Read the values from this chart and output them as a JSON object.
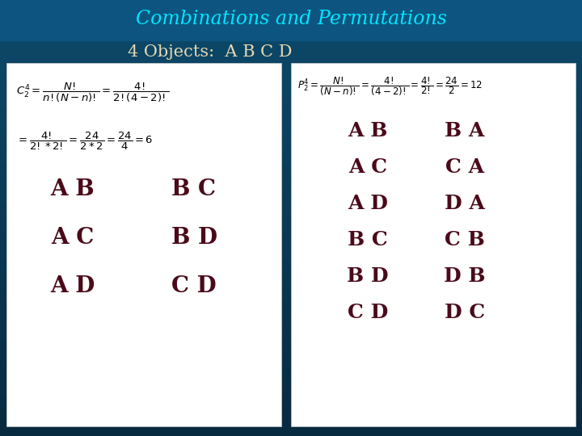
{
  "title": "Combinations and Permutations",
  "subtitle": "4 Objects:  A B C D",
  "bg_color_top": "#0d4a6b",
  "bg_color_bottom": "#082a40",
  "title_color": "#00e5ff",
  "subtitle_color": "#e8d8b0",
  "panel_color": "#f5f5f5",
  "text_color_dark": "#4a0a1a",
  "formula_color": "#000000",
  "left_col1": [
    "A B",
    "A C",
    "A D"
  ],
  "left_col2": [
    "B C",
    "B D",
    "C D"
  ],
  "right_col1": [
    "A B",
    "A C",
    "A D",
    "B C",
    "B D",
    "C D"
  ],
  "right_col2": [
    "B A",
    "C A",
    "D A",
    "C B",
    "D B",
    "D C"
  ]
}
